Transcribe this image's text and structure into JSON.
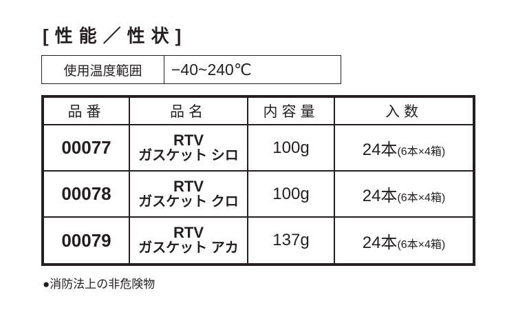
{
  "title": "[性能／性状]",
  "spec": {
    "label": "使用温度範囲",
    "value": "−40~240℃"
  },
  "table": {
    "headers": [
      "品番",
      "品名",
      "内容量",
      "入数"
    ],
    "rows": [
      {
        "code": "00077",
        "name_line1": "RTV",
        "name_line2": "ガスケット シロ",
        "volume": "100g",
        "qty_main": "24本",
        "qty_detail": "(6本×4箱)"
      },
      {
        "code": "00078",
        "name_line1": "RTV",
        "name_line2": "ガスケット クロ",
        "volume": "100g",
        "qty_main": "24本",
        "qty_detail": "(6本×4箱)"
      },
      {
        "code": "00079",
        "name_line1": "RTV",
        "name_line2": "ガスケット アカ",
        "volume": "137g",
        "qty_main": "24本",
        "qty_detail": "(6本×4箱)"
      }
    ]
  },
  "note": "●消防法上の非危険物"
}
